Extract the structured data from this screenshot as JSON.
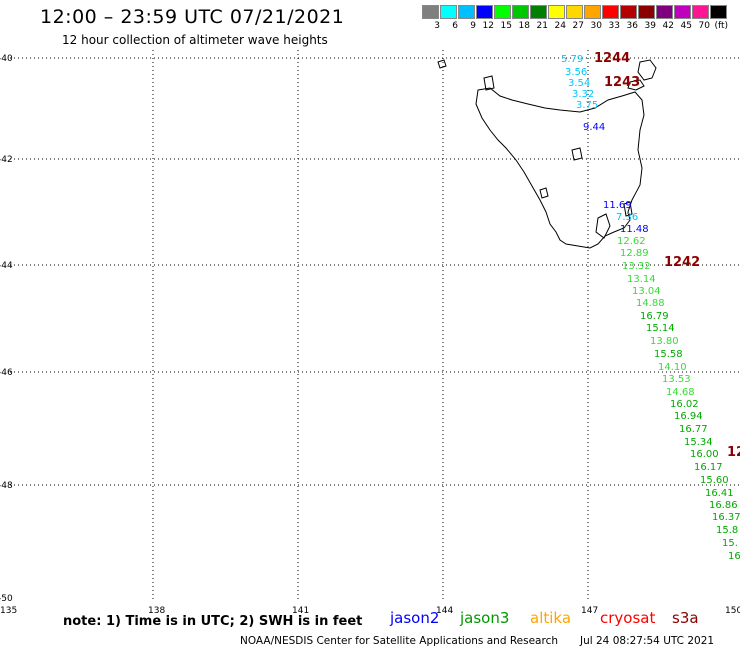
{
  "header": {
    "title": "12:00 – 23:59 UTC 07/21/2021",
    "subtitle": "12 hour collection of altimeter wave heights"
  },
  "colorbar": {
    "colors": [
      "#7f7f7f",
      "#00ffff",
      "#00bfff",
      "#0000ff",
      "#00ff00",
      "#00c800",
      "#007f00",
      "#ffff00",
      "#ffd700",
      "#ffa500",
      "#ff0000",
      "#b40000",
      "#8b0000",
      "#7f007f",
      "#bf00bf",
      "#ff1493",
      "#000000"
    ],
    "labels": [
      "3",
      "6",
      "9",
      "12",
      "15",
      "18",
      "21",
      "24",
      "27",
      "30",
      "33",
      "36",
      "39",
      "42",
      "45",
      "70",
      "(ft)"
    ]
  },
  "axes": {
    "lat_ticks": [
      "-40",
      "-42",
      "-44",
      "-46",
      "-48",
      "-50"
    ],
    "lon_ticks": [
      "135",
      "138",
      "141",
      "144",
      "147",
      "150"
    ]
  },
  "map_data": {
    "time_labels": [
      {
        "text": "1244",
        "color": "#8b0000"
      },
      {
        "text": "1243",
        "color": "#8b0000"
      },
      {
        "text": "1242",
        "color": "#8b0000"
      },
      {
        "text": "12",
        "color": "#8b0000"
      }
    ],
    "swh_labels": [
      {
        "v": "5.79",
        "c": "#00c8ff"
      },
      {
        "v": "3.56",
        "c": "#00c8ff"
      },
      {
        "v": "3.54",
        "c": "#00c8ff"
      },
      {
        "v": "3.32",
        "c": "#00c8ff"
      },
      {
        "v": "3.75",
        "c": "#00c8ff"
      },
      {
        "v": "9.44",
        "c": "#0000ff"
      },
      {
        "v": "11.69",
        "c": "#0000ff"
      },
      {
        "v": "7.36",
        "c": "#00bfff"
      },
      {
        "v": "11.48",
        "c": "#0000ff"
      },
      {
        "v": "12.62",
        "c": "#33dd33"
      },
      {
        "v": "12.89",
        "c": "#33dd33"
      },
      {
        "v": "13.32",
        "c": "#33dd33"
      },
      {
        "v": "13.14",
        "c": "#33dd33"
      },
      {
        "v": "13.04",
        "c": "#33dd33"
      },
      {
        "v": "14.88",
        "c": "#33dd33"
      },
      {
        "v": "16.79",
        "c": "#00aa00"
      },
      {
        "v": "15.14",
        "c": "#00aa00"
      },
      {
        "v": "13.80",
        "c": "#33dd33"
      },
      {
        "v": "15.58",
        "c": "#00aa00"
      },
      {
        "v": "14.10",
        "c": "#33dd33"
      },
      {
        "v": "13.53",
        "c": "#33dd33"
      },
      {
        "v": "14.68",
        "c": "#33dd33"
      },
      {
        "v": "16.02",
        "c": "#00aa00"
      },
      {
        "v": "16.94",
        "c": "#00aa00"
      },
      {
        "v": "16.77",
        "c": "#00aa00"
      },
      {
        "v": "15.34",
        "c": "#00aa00"
      },
      {
        "v": "16.00",
        "c": "#00aa00"
      },
      {
        "v": "16.17",
        "c": "#00aa00"
      },
      {
        "v": "15.60",
        "c": "#00aa00"
      },
      {
        "v": "16.41",
        "c": "#00aa00"
      },
      {
        "v": "16.86",
        "c": "#00aa00"
      },
      {
        "v": "16.37",
        "c": "#00aa00"
      },
      {
        "v": "15.8",
        "c": "#00aa00"
      },
      {
        "v": "15.",
        "c": "#00aa00"
      },
      {
        "v": "16",
        "c": "#00aa00"
      }
    ]
  },
  "note": "note:  1) Time is in UTC;  2) SWH is in feet",
  "legend": [
    {
      "name": "jason2",
      "color": "#0000ff"
    },
    {
      "name": "jason3",
      "color": "#009900"
    },
    {
      "name": "altika",
      "color": "#ffa500"
    },
    {
      "name": "cryosat",
      "color": "#ff0000"
    },
    {
      "name": "s3a",
      "color": "#8b0000"
    }
  ],
  "footer": {
    "credit": "NOAA/NESDIS Center for Satellite Applications and Research",
    "timestamp": "Jul 24 08:27:54 UTC 2021"
  }
}
